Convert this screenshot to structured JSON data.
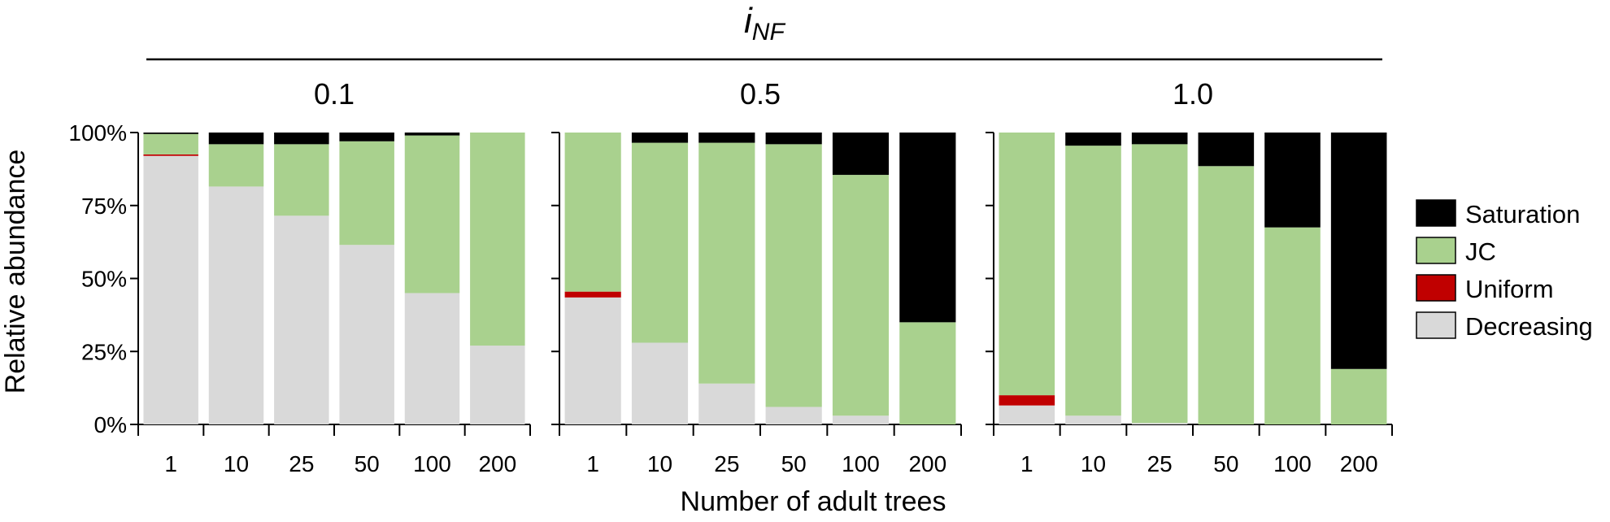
{
  "header": {
    "main": "i",
    "sub": "NF"
  },
  "ylabel": "Relative abundance",
  "xlabel": "Number of adult trees",
  "chart_data": {
    "type": "bar",
    "stacked": true,
    "categories": [
      "1",
      "10",
      "25",
      "50",
      "100",
      "200"
    ],
    "ylim": [
      0,
      100
    ],
    "yticks": [
      "0%",
      "25%",
      "50%",
      "75%",
      "100%"
    ],
    "legend_position": "right",
    "series_meta": [
      {
        "name": "Decreasing",
        "color": "#d9d9d9"
      },
      {
        "name": "Uniform",
        "color": "#c00000"
      },
      {
        "name": "JC",
        "color": "#a9d18e"
      },
      {
        "name": "Saturation",
        "color": "#000000"
      }
    ],
    "legend_order": [
      "Saturation",
      "JC",
      "Uniform",
      "Decreasing"
    ],
    "panels": [
      {
        "title": "0.1",
        "series": [
          {
            "name": "Decreasing",
            "values": [
              92,
              81.5,
              71.5,
              61.5,
              45,
              27
            ]
          },
          {
            "name": "Uniform",
            "values": [
              0.5,
              0,
              0,
              0,
              0,
              0
            ]
          },
          {
            "name": "JC",
            "values": [
              7,
              14.5,
              24.5,
              35.5,
              54,
              73
            ]
          },
          {
            "name": "Saturation",
            "values": [
              0.5,
              4,
              4,
              3,
              1,
              0
            ]
          }
        ]
      },
      {
        "title": "0.5",
        "series": [
          {
            "name": "Decreasing",
            "values": [
              43.5,
              28,
              14,
              6,
              3,
              0
            ]
          },
          {
            "name": "Uniform",
            "values": [
              2,
              0,
              0,
              0,
              0,
              0
            ]
          },
          {
            "name": "JC",
            "values": [
              54.5,
              68.5,
              82.5,
              90,
              82.5,
              35
            ]
          },
          {
            "name": "Saturation",
            "values": [
              0,
              3.5,
              3.5,
              4,
              14.5,
              65
            ]
          }
        ]
      },
      {
        "title": "1.0",
        "series": [
          {
            "name": "Decreasing",
            "values": [
              6.5,
              3,
              0.5,
              0,
              0,
              0
            ]
          },
          {
            "name": "Uniform",
            "values": [
              3.5,
              0,
              0,
              0,
              0,
              0
            ]
          },
          {
            "name": "JC",
            "values": [
              90,
              92.5,
              95.5,
              88.5,
              67.5,
              19
            ]
          },
          {
            "name": "Saturation",
            "values": [
              0,
              4.5,
              4,
              11.5,
              32.5,
              81
            ]
          }
        ]
      }
    ]
  }
}
